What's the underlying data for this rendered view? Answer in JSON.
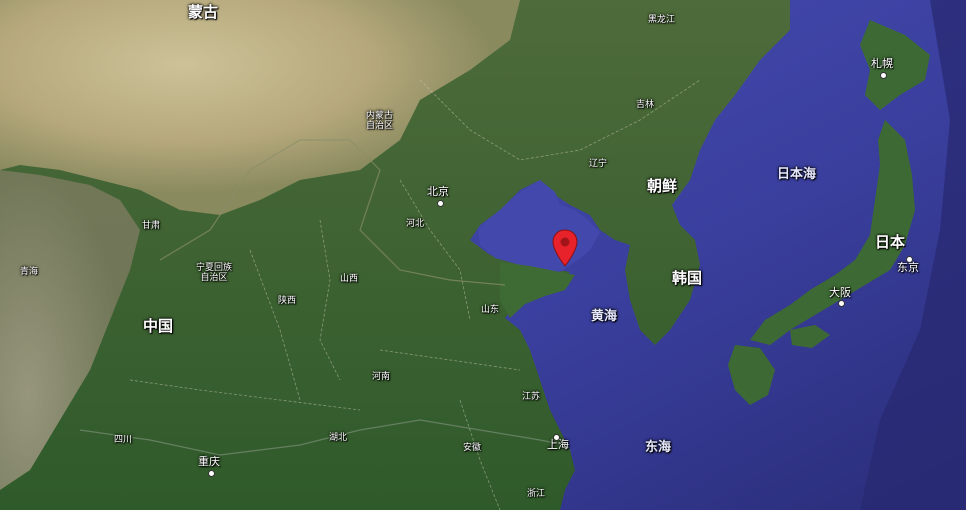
{
  "map": {
    "type": "satellite",
    "labels": {
      "mongolia": "蒙古",
      "inner_mongolia": "内蒙古\n自治区",
      "heilongjiang": "黑龙江",
      "jilin": "吉林",
      "liaoning": "辽宁",
      "beijing": "北京",
      "hebei": "河北",
      "gansu": "甘肃",
      "qinghai": "青海",
      "ningxia": "宁夏回族\n自治区",
      "shanxi": "山西",
      "shaanxi": "陕西",
      "shandong": "山东",
      "henan": "河南",
      "jiangsu": "江苏",
      "hubei": "湖北",
      "anhui": "安徽",
      "shanghai": "上海",
      "sichuan": "四川",
      "chongqing": "重庆",
      "zhejiang": "浙江",
      "china": "中国",
      "north_korea": "朝鲜",
      "south_korea": "韩国",
      "japan": "日本",
      "sapporo": "札幌",
      "tokyo": "东京",
      "osaka": "大阪",
      "sea_of_japan": "日本海",
      "yellow_sea": "黄海",
      "east_china_sea": "东海"
    },
    "pin": {
      "name": "location-marker",
      "color": "#e8222a"
    },
    "colors": {
      "sea": "#3a3f9e",
      "deep_sea": "#2b2f7c",
      "land_green": "#3f6a35",
      "land_desert": "#c9b98f"
    }
  }
}
